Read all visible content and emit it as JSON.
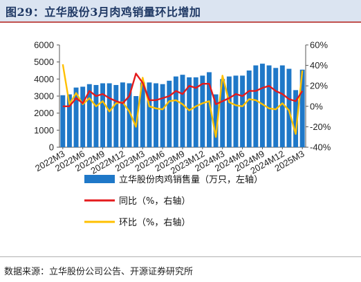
{
  "figure": {
    "title": "图29：立华股份3月肉鸡销量环比增加",
    "source": "数据来源：立华股份公司公告、开源证券研究所"
  },
  "colors": {
    "bar": "#1f78c8",
    "yoy": "#e41a1c",
    "mom": "#ffc000",
    "title_bg": "#dbe4f1",
    "title_border": "#c0504d",
    "title_text": "#1f3864"
  },
  "chart_data": {
    "type": "bar",
    "categories": [
      "2022M3",
      "2022M4",
      "2022M5",
      "2022M6",
      "2022M7",
      "2022M8",
      "2022M9",
      "2022M10",
      "2022M11",
      "2022M12",
      "2023M1",
      "2023M2",
      "2023M3",
      "2023M4",
      "2023M5",
      "2023M6",
      "2023M7",
      "2023M8",
      "2023M9",
      "2023M10",
      "2023M11",
      "2023M12",
      "2024M1",
      "2024M2",
      "2024M3",
      "2024M4",
      "2024M5",
      "2024M6",
      "2024M7",
      "2024M8",
      "2024M9",
      "2024M10",
      "2024M11",
      "2024M12",
      "2025M1",
      "2025M2",
      "2025M3"
    ],
    "x_tick_labels": [
      "2022M3",
      "2022M6",
      "2022M9",
      "2022M12",
      "2023M3",
      "2023M6",
      "2023M9",
      "2023M12",
      "2024M3",
      "2024M6",
      "2024M9",
      "2024M12",
      "2025M3"
    ],
    "series": [
      {
        "name": "立华股份肉鸡销售量（万只，左轴）",
        "axis": "left",
        "values": [
          3050,
          3100,
          3500,
          3550,
          3700,
          3650,
          3750,
          3750,
          3650,
          3800,
          3750,
          3000,
          3800,
          3800,
          3750,
          3700,
          3900,
          4150,
          4250,
          4100,
          4100,
          4200,
          4400,
          3100,
          4000,
          4150,
          4200,
          4200,
          4500,
          4800,
          4900,
          4800,
          4650,
          4800,
          4600,
          3350,
          4550
        ]
      },
      {
        "name": "同比（%，右轴）",
        "axis": "right",
        "values": [
          0,
          0,
          8,
          3,
          15,
          10,
          12,
          8,
          5,
          3,
          10,
          32,
          23,
          6,
          6,
          8,
          10,
          15,
          12,
          20,
          18,
          22,
          22,
          2,
          5,
          8,
          12,
          10,
          15,
          15,
          18,
          20,
          15,
          12,
          7,
          5,
          15
        ]
      },
      {
        "name": "环比（%，右轴）",
        "axis": "right",
        "values": [
          41,
          2,
          13,
          2,
          8,
          0,
          5,
          -5,
          3,
          4,
          -5,
          -20,
          28,
          0,
          -2,
          -3,
          5,
          6,
          2,
          -4,
          0,
          3,
          5,
          -30,
          30,
          4,
          1,
          0,
          7,
          6,
          2,
          -2,
          -3,
          3,
          -4,
          -27,
          35
        ]
      }
    ],
    "ylim_left": [
      0,
      6000
    ],
    "yticks_left": [
      0,
      1000,
      2000,
      3000,
      4000,
      5000,
      6000
    ],
    "ylim_right": [
      -40,
      60
    ],
    "yticks_right": [
      "-40%",
      "-20%",
      "0%",
      "20%",
      "40%",
      "60%"
    ],
    "grid": false,
    "legend_position": "bottom"
  }
}
